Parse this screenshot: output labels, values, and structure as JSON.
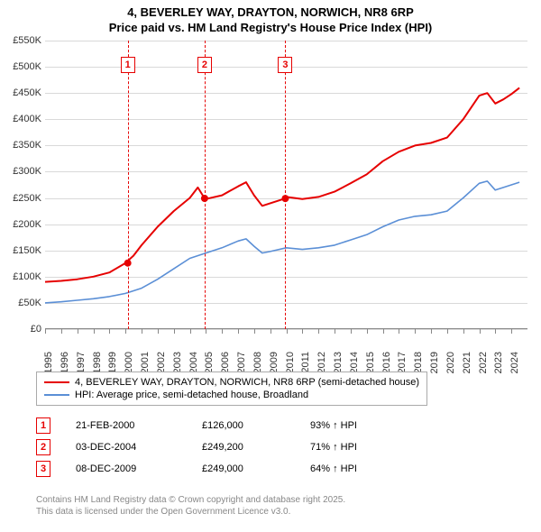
{
  "title_line1": "4, BEVERLEY WAY, DRAYTON, NORWICH, NR8 6RP",
  "title_line2": "Price paid vs. HM Land Registry's House Price Index (HPI)",
  "chart": {
    "type": "line",
    "background_color": "#ffffff",
    "grid_color": "#d9d9d9",
    "axis_color": "#888888",
    "y_axis": {
      "min": 0,
      "max": 550000,
      "step": 50000,
      "labels": [
        "£0",
        "£50K",
        "£100K",
        "£150K",
        "£200K",
        "£250K",
        "£300K",
        "£350K",
        "£400K",
        "£450K",
        "£500K",
        "£550K"
      ]
    },
    "x_axis": {
      "min": 1995,
      "max": 2025,
      "labels": [
        "1995",
        "1996",
        "1997",
        "1998",
        "1999",
        "2000",
        "2001",
        "2002",
        "2003",
        "2004",
        "2005",
        "2006",
        "2007",
        "2008",
        "2009",
        "2010",
        "2011",
        "2012",
        "2013",
        "2014",
        "2015",
        "2016",
        "2017",
        "2018",
        "2019",
        "2020",
        "2021",
        "2022",
        "2023",
        "2024"
      ]
    },
    "series": [
      {
        "name": "property",
        "label": "4, BEVERLEY WAY, DRAYTON, NORWICH, NR8 6RP (semi-detached house)",
        "color": "#e60000",
        "line_width": 2,
        "data": [
          [
            1995,
            90000
          ],
          [
            1996,
            92000
          ],
          [
            1997,
            95000
          ],
          [
            1998,
            100000
          ],
          [
            1999,
            108000
          ],
          [
            2000,
            126000
          ],
          [
            2000.5,
            140000
          ],
          [
            2001,
            160000
          ],
          [
            2002,
            195000
          ],
          [
            2003,
            225000
          ],
          [
            2004,
            250000
          ],
          [
            2004.5,
            270000
          ],
          [
            2004.92,
            249200
          ],
          [
            2005,
            248000
          ],
          [
            2006,
            255000
          ],
          [
            2007,
            272000
          ],
          [
            2007.5,
            280000
          ],
          [
            2008,
            255000
          ],
          [
            2008.5,
            235000
          ],
          [
            2009,
            240000
          ],
          [
            2009.94,
            249000
          ],
          [
            2010,
            252000
          ],
          [
            2011,
            248000
          ],
          [
            2012,
            252000
          ],
          [
            2013,
            262000
          ],
          [
            2014,
            278000
          ],
          [
            2015,
            295000
          ],
          [
            2016,
            320000
          ],
          [
            2017,
            338000
          ],
          [
            2018,
            350000
          ],
          [
            2019,
            355000
          ],
          [
            2020,
            365000
          ],
          [
            2021,
            400000
          ],
          [
            2022,
            445000
          ],
          [
            2022.5,
            450000
          ],
          [
            2023,
            430000
          ],
          [
            2023.5,
            438000
          ],
          [
            2024,
            448000
          ],
          [
            2024.5,
            460000
          ]
        ]
      },
      {
        "name": "hpi",
        "label": "HPI: Average price, semi-detached house, Broadland",
        "color": "#5b8fd6",
        "line_width": 1.6,
        "data": [
          [
            1995,
            50000
          ],
          [
            1996,
            52000
          ],
          [
            1997,
            55000
          ],
          [
            1998,
            58000
          ],
          [
            1999,
            62000
          ],
          [
            2000,
            68000
          ],
          [
            2001,
            78000
          ],
          [
            2002,
            95000
          ],
          [
            2003,
            115000
          ],
          [
            2004,
            135000
          ],
          [
            2005,
            145000
          ],
          [
            2006,
            155000
          ],
          [
            2007,
            168000
          ],
          [
            2007.5,
            172000
          ],
          [
            2008,
            158000
          ],
          [
            2008.5,
            145000
          ],
          [
            2009,
            148000
          ],
          [
            2010,
            155000
          ],
          [
            2011,
            152000
          ],
          [
            2012,
            155000
          ],
          [
            2013,
            160000
          ],
          [
            2014,
            170000
          ],
          [
            2015,
            180000
          ],
          [
            2016,
            195000
          ],
          [
            2017,
            208000
          ],
          [
            2018,
            215000
          ],
          [
            2019,
            218000
          ],
          [
            2020,
            225000
          ],
          [
            2021,
            250000
          ],
          [
            2022,
            278000
          ],
          [
            2022.5,
            282000
          ],
          [
            2023,
            265000
          ],
          [
            2023.5,
            270000
          ],
          [
            2024,
            275000
          ],
          [
            2024.5,
            280000
          ]
        ]
      }
    ],
    "markers": [
      {
        "n": "1",
        "year": 2000.14,
        "price": 126000,
        "color": "#e60000"
      },
      {
        "n": "2",
        "year": 2004.92,
        "price": 249200,
        "color": "#e60000"
      },
      {
        "n": "3",
        "year": 2009.94,
        "price": 249000,
        "color": "#e60000"
      }
    ]
  },
  "legend": {
    "items": [
      {
        "color": "#e60000",
        "label": "4, BEVERLEY WAY, DRAYTON, NORWICH, NR8 6RP (semi-detached house)"
      },
      {
        "color": "#5b8fd6",
        "label": "HPI: Average price, semi-detached house, Broadland"
      }
    ]
  },
  "sales": [
    {
      "n": "1",
      "color": "#e60000",
      "date": "21-FEB-2000",
      "price": "£126,000",
      "hpi": "93% ↑ HPI"
    },
    {
      "n": "2",
      "color": "#e60000",
      "date": "03-DEC-2004",
      "price": "£249,200",
      "hpi": "71% ↑ HPI"
    },
    {
      "n": "3",
      "color": "#e60000",
      "date": "08-DEC-2009",
      "price": "£249,000",
      "hpi": "64% ↑ HPI"
    }
  ],
  "copyright_line1": "Contains HM Land Registry data © Crown copyright and database right 2025.",
  "copyright_line2": "This data is licensed under the Open Government Licence v3.0."
}
